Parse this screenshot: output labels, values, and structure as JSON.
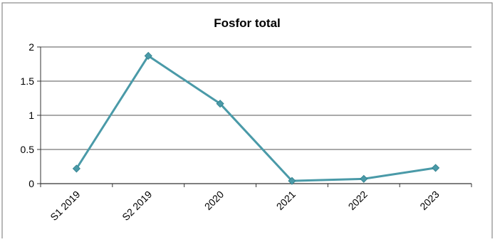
{
  "chart_data": {
    "type": "line",
    "title": "Fosfor total",
    "xlabel": "",
    "ylabel": "",
    "categories": [
      "S1 2019",
      "S2 2019",
      "2020",
      "2021",
      "2022",
      "2023"
    ],
    "series": [
      {
        "values": [
          0.22,
          1.87,
          1.17,
          0.04,
          0.07,
          0.23
        ]
      }
    ],
    "ylim": [
      0,
      2
    ],
    "yticks": [
      "0",
      "0.5",
      "1",
      "1.5",
      "2"
    ],
    "grid": true,
    "legend": "none",
    "colors": {
      "line": "#4a9aa8",
      "marker": "#4a9aa8",
      "grid": "#555555",
      "axis": "#333333"
    }
  }
}
